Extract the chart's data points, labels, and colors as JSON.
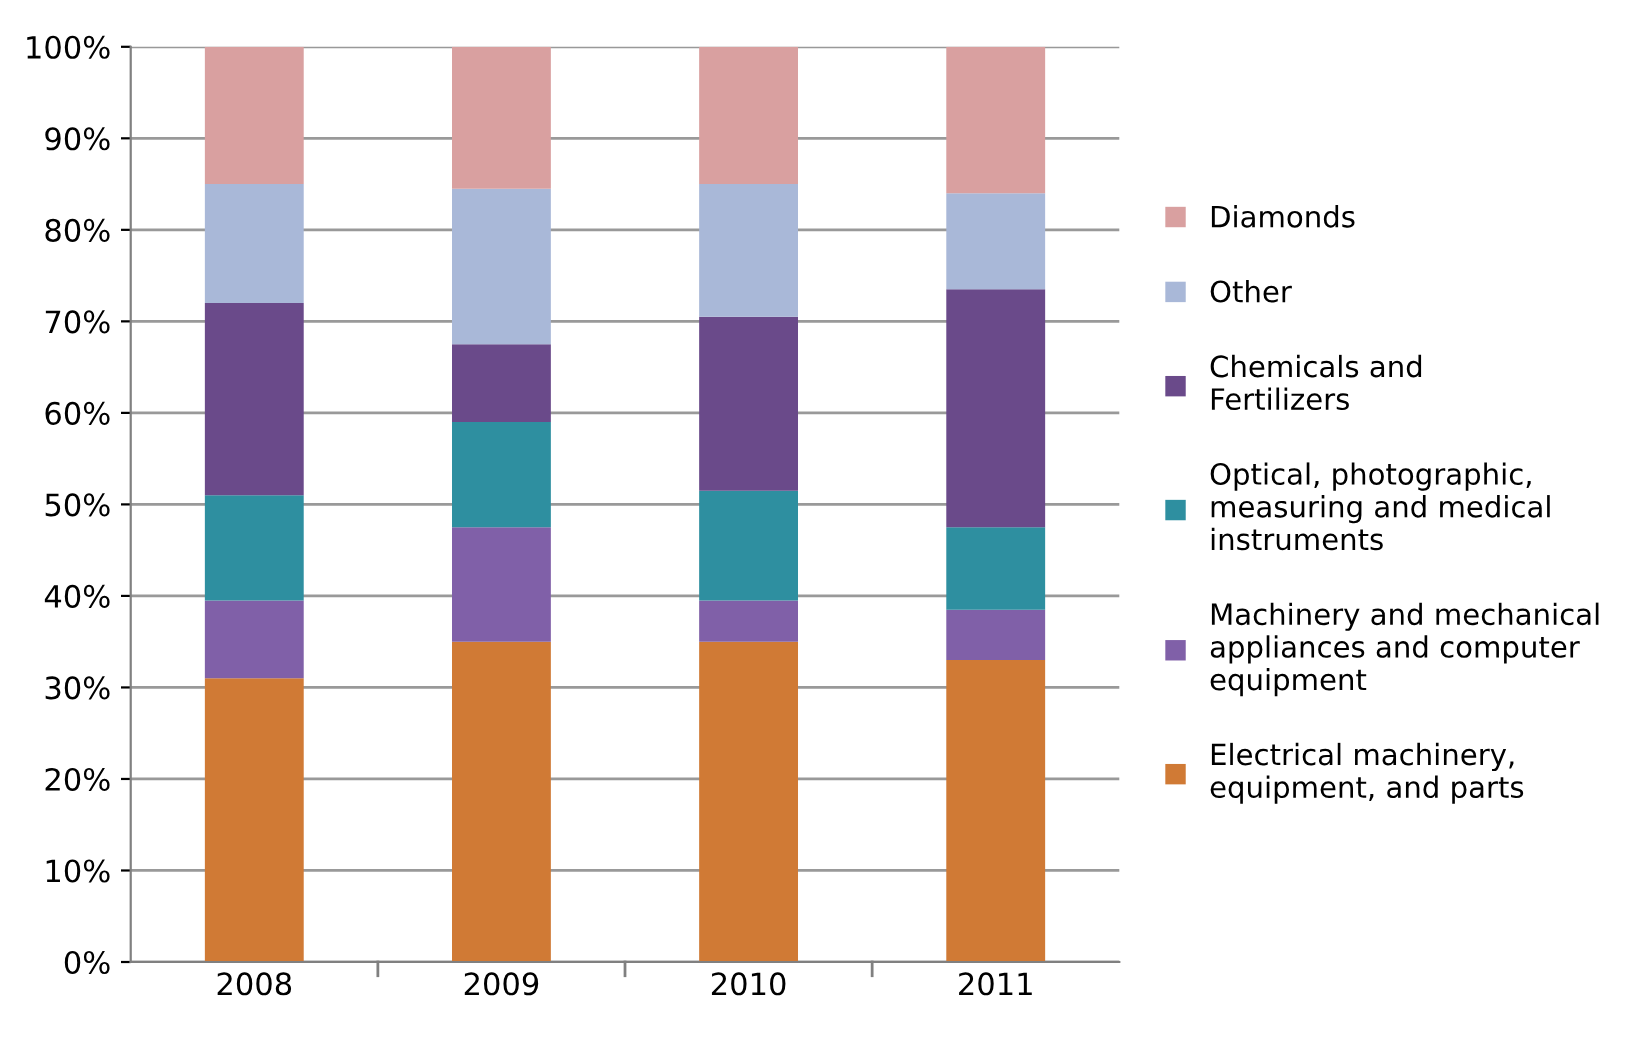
{
  "chart_data": {
    "type": "bar",
    "stacked": true,
    "categories": [
      "2008",
      "2009",
      "2010",
      "2011"
    ],
    "series": [
      {
        "name": "Electrical machinery, equipment, and parts",
        "color": "#d07a35",
        "values": [
          31,
          35,
          35,
          33
        ]
      },
      {
        "name": "Machinery and mechanical appliances and computer equipment",
        "color": "#8060a8",
        "values": [
          8.5,
          12.5,
          4.5,
          5.5
        ]
      },
      {
        "name": "Optical, photographic, measuring and medical instruments",
        "color": "#2e8fa0",
        "values": [
          11.5,
          11.5,
          12,
          9
        ]
      },
      {
        "name": "Chemicals and Fertilizers",
        "color": "#6a4a8a",
        "values": [
          21,
          8.5,
          19,
          26
        ]
      },
      {
        "name": "Other",
        "color": "#a9b8d8",
        "values": [
          13,
          17,
          14.5,
          10.5
        ]
      },
      {
        "name": "Diamonds",
        "color": "#d9a0a0",
        "values": [
          15,
          15.5,
          15,
          16
        ]
      }
    ],
    "ylim": [
      0,
      100
    ],
    "yticks": [
      {
        "value": 0,
        "label": "0%"
      },
      {
        "value": 10,
        "label": "10%"
      },
      {
        "value": 20,
        "label": "20%"
      },
      {
        "value": 30,
        "label": "30%"
      },
      {
        "value": 40,
        "label": "40%"
      },
      {
        "value": 50,
        "label": "50%"
      },
      {
        "value": 60,
        "label": "60%"
      },
      {
        "value": 70,
        "label": "70%"
      },
      {
        "value": 80,
        "label": "80%"
      },
      {
        "value": 90,
        "label": "90%"
      },
      {
        "value": 100,
        "label": "100%"
      }
    ],
    "grid": "y",
    "legend": "right"
  }
}
